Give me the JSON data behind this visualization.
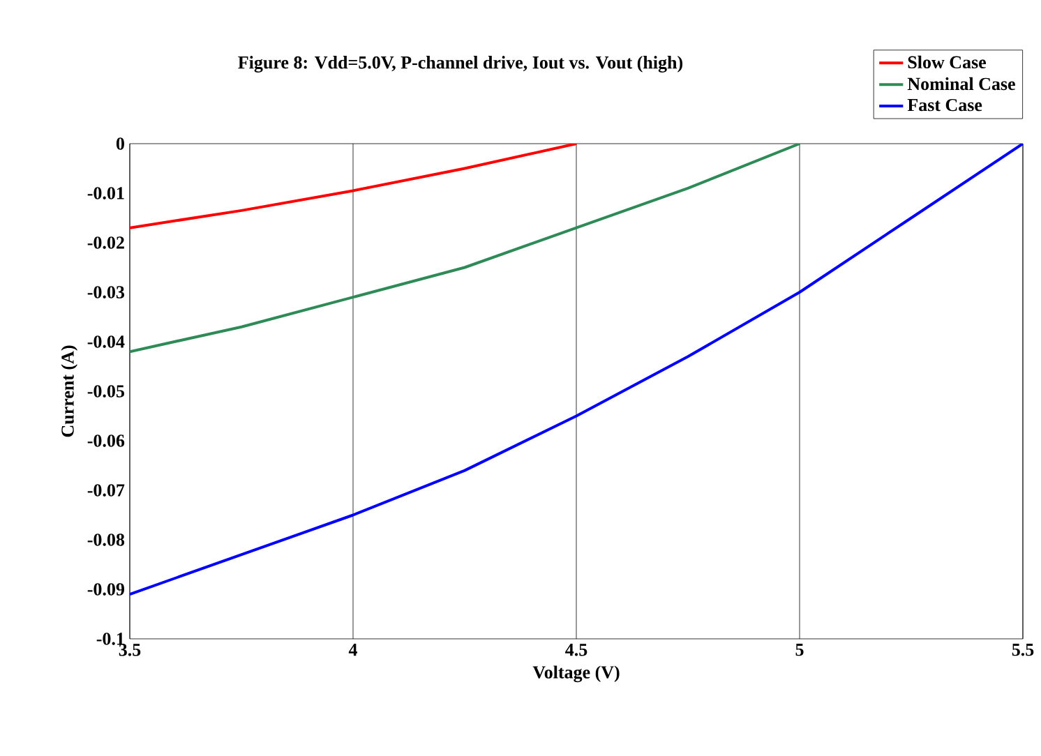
{
  "chart_data": {
    "type": "line",
    "title": "Figure 8: Vdd=5.0V, P-channel drive, Iout vs. Vout (high)",
    "xlabel": "Voltage (V)",
    "ylabel": "Current (A)",
    "x": [
      3.5,
      3.75,
      4.0,
      4.25,
      4.5,
      4.75,
      5.0,
      5.25,
      5.5
    ],
    "series": [
      {
        "name": "Slow Case",
        "color": "#ff0000",
        "values": [
          -0.017,
          -0.0135,
          -0.0095,
          -0.005,
          0,
          null,
          null,
          null,
          null
        ]
      },
      {
        "name": "Nominal Case",
        "color": "#2e8b57",
        "values": [
          -0.042,
          -0.037,
          -0.031,
          -0.025,
          -0.017,
          -0.009,
          0,
          null,
          null
        ]
      },
      {
        "name": "Fast Case",
        "color": "#0000ff",
        "values": [
          -0.091,
          -0.083,
          -0.075,
          -0.066,
          -0.055,
          -0.043,
          -0.03,
          -0.015,
          0
        ]
      }
    ],
    "xlim": [
      3.5,
      5.5
    ],
    "ylim": [
      -0.1,
      0
    ],
    "xticks": [
      3.5,
      4,
      4.5,
      5,
      5.5
    ],
    "yticks": [
      -0.1,
      -0.09,
      -0.08,
      -0.07,
      -0.06,
      -0.05,
      -0.04,
      -0.03,
      -0.02,
      -0.01,
      0
    ],
    "grid": "x",
    "legend": "top right",
    "marker": "none",
    "line_style": "solid"
  }
}
